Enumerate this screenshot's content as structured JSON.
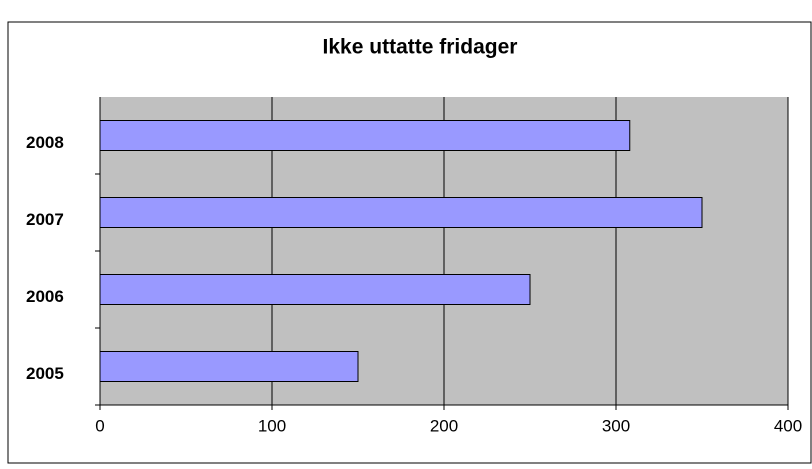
{
  "chart_data": {
    "type": "barh",
    "title": "Ikke uttatte fridager",
    "categories": [
      "2005",
      "2006",
      "2007",
      "2008"
    ],
    "values": [
      150,
      250,
      350,
      308
    ],
    "color": "#9999ff",
    "xlim": [
      0,
      400
    ],
    "xticks": [
      0,
      100,
      200,
      300,
      400
    ],
    "grid": true
  }
}
